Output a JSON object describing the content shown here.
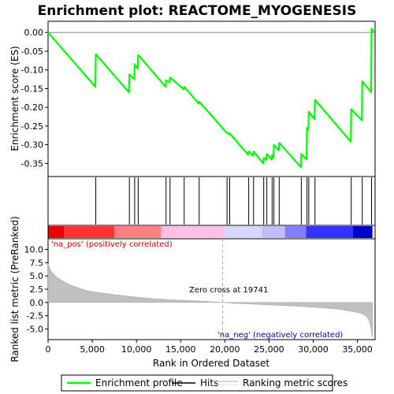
{
  "chart_data": {
    "title": "Enrichment plot: REACTOME_MYOGENESIS",
    "xlabel": "Rank in Ordered Dataset",
    "x_ticks": [
      0,
      5000,
      10000,
      15000,
      20000,
      25000,
      30000,
      35000
    ],
    "x_tick_labels": [
      "0",
      "5,000",
      "10,000",
      "15,000",
      "20,000",
      "25,000",
      "30,000",
      "35,000"
    ],
    "x_range": [
      0,
      37000
    ],
    "n_genes": 36700,
    "top_panel": {
      "type": "line",
      "ylabel": "Enrichment score (ES)",
      "ylim": [
        -0.385,
        0.03
      ],
      "y_ticks": [
        0.0,
        -0.05,
        -0.1,
        -0.15,
        -0.2,
        -0.25,
        -0.3,
        -0.35
      ],
      "y_tick_labels": [
        "0.00",
        "-0.05",
        "-0.10",
        "-0.15",
        "-0.20",
        "-0.25",
        "-0.30",
        "-0.35"
      ],
      "series_name": "Enrichment profile",
      "color": "#00ff00",
      "points": [
        [
          0,
          0.0
        ],
        [
          5350,
          -0.145
        ],
        [
          5400,
          -0.058
        ],
        [
          9150,
          -0.16
        ],
        [
          9200,
          -0.112
        ],
        [
          9750,
          -0.125
        ],
        [
          9800,
          -0.085
        ],
        [
          10150,
          -0.097
        ],
        [
          10200,
          -0.06
        ],
        [
          13300,
          -0.145
        ],
        [
          13350,
          -0.128
        ],
        [
          13750,
          -0.133
        ],
        [
          13800,
          -0.12
        ],
        [
          15350,
          -0.152
        ],
        [
          15400,
          -0.145
        ],
        [
          17050,
          -0.19
        ],
        [
          17100,
          -0.185
        ],
        [
          20200,
          -0.268
        ],
        [
          20250,
          -0.267
        ],
        [
          20500,
          -0.272
        ],
        [
          20550,
          -0.27
        ],
        [
          22650,
          -0.327
        ],
        [
          22700,
          -0.318
        ],
        [
          23200,
          -0.33
        ],
        [
          23250,
          -0.318
        ],
        [
          24350,
          -0.35
        ],
        [
          24400,
          -0.335
        ],
        [
          24700,
          -0.34
        ],
        [
          24750,
          -0.325
        ],
        [
          25300,
          -0.34
        ],
        [
          25350,
          -0.328
        ],
        [
          25500,
          -0.335
        ],
        [
          25550,
          -0.3
        ],
        [
          26100,
          -0.315
        ],
        [
          26150,
          -0.295
        ],
        [
          28600,
          -0.36
        ],
        [
          28650,
          -0.325
        ],
        [
          29250,
          -0.34
        ],
        [
          29300,
          -0.255
        ],
        [
          29450,
          -0.26
        ],
        [
          29500,
          -0.212
        ],
        [
          30150,
          -0.232
        ],
        [
          30200,
          -0.18
        ],
        [
          34250,
          -0.292
        ],
        [
          34300,
          -0.205
        ],
        [
          35500,
          -0.235
        ],
        [
          35550,
          -0.13
        ],
        [
          36550,
          -0.16
        ],
        [
          36600,
          0.01
        ],
        [
          36900,
          0.0
        ]
      ]
    },
    "hits_panel": {
      "type": "hits",
      "series_name": "Hits",
      "positions": [
        5400,
        9200,
        9800,
        10200,
        13350,
        13800,
        15400,
        17100,
        20250,
        20550,
        22700,
        23250,
        24400,
        24750,
        25350,
        25550,
        26150,
        28650,
        29300,
        29500,
        30200,
        34300,
        35550,
        36600
      ]
    },
    "color_bar": {
      "label_pos": "'na_pos' (positively correlated)",
      "label_neg": "'na_neg' (negatively correlated)",
      "segments": [
        {
          "from": 0,
          "to": 1800,
          "color": "#e60000"
        },
        {
          "from": 1800,
          "to": 7500,
          "color": "#ff3333"
        },
        {
          "from": 7500,
          "to": 12800,
          "color": "#ff8080"
        },
        {
          "from": 12800,
          "to": 19800,
          "color": "#ffbfe6"
        },
        {
          "from": 19800,
          "to": 24200,
          "color": "#d6d6ff"
        },
        {
          "from": 24200,
          "to": 26800,
          "color": "#bdbdff"
        },
        {
          "from": 26800,
          "to": 29200,
          "color": "#8080ff"
        },
        {
          "from": 29200,
          "to": 34500,
          "color": "#3333ff"
        },
        {
          "from": 34500,
          "to": 36700,
          "color": "#0000cc"
        }
      ]
    },
    "bottom_panel": {
      "type": "area",
      "ylabel": "Ranked list metric (PreRanked)",
      "ylim": [
        -7.0,
        12.0
      ],
      "y_ticks": [
        10.0,
        7.5,
        5.0,
        2.5,
        0.0,
        -2.5,
        -5.0
      ],
      "y_tick_labels": [
        "10.0",
        "7.5",
        "5.0",
        "2.5",
        "0.0",
        "-2.5",
        "-5.0"
      ],
      "series_name": "Ranking metric scores",
      "fill": "#c0c0c0",
      "points": [
        [
          0,
          7.3
        ],
        [
          300,
          6.0
        ],
        [
          800,
          5.0
        ],
        [
          1500,
          4.2
        ],
        [
          2500,
          3.3
        ],
        [
          3500,
          2.7
        ],
        [
          4500,
          2.2
        ],
        [
          5500,
          1.9
        ],
        [
          7000,
          1.6
        ],
        [
          8500,
          1.3
        ],
        [
          10000,
          1.0
        ],
        [
          12000,
          0.7
        ],
        [
          14000,
          0.5
        ],
        [
          16000,
          0.35
        ],
        [
          18000,
          0.2
        ],
        [
          19741,
          0.0
        ],
        [
          21000,
          -0.15
        ],
        [
          23000,
          -0.3
        ],
        [
          25000,
          -0.45
        ],
        [
          27000,
          -0.6
        ],
        [
          29000,
          -0.8
        ],
        [
          31000,
          -1.0
        ],
        [
          33000,
          -1.3
        ],
        [
          34500,
          -1.7
        ],
        [
          35500,
          -2.1
        ],
        [
          36000,
          -2.6
        ],
        [
          36300,
          -3.3
        ],
        [
          36500,
          -4.5
        ],
        [
          36650,
          -6.3
        ],
        [
          36700,
          -6.5
        ]
      ],
      "zero_cross_rank": 19741,
      "zero_cross_label": "Zero cross at 19741"
    },
    "legend": {
      "placement": "bottom",
      "entries": [
        {
          "label": "Enrichment profile",
          "kind": "line",
          "color": "#00ff00"
        },
        {
          "label": "Hits",
          "kind": "line",
          "color": "#000000"
        },
        {
          "label": "Ranking metric scores",
          "kind": "line",
          "color": "#c0c0c0"
        }
      ]
    }
  }
}
